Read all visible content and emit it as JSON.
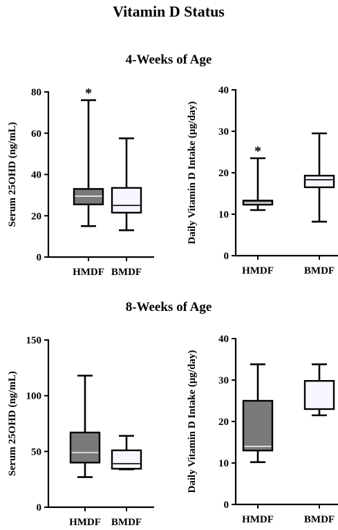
{
  "figure": {
    "title": "Vitamin D Status",
    "sections": [
      {
        "title": "4-Weeks of Age"
      },
      {
        "title": "8-Weeks of Age"
      }
    ]
  },
  "colors": {
    "hmdf_fill": "#7a7a7a",
    "bmdf_fill": "#f7f7ff",
    "axis": "#000000"
  },
  "chart_data": [
    {
      "type": "box",
      "section": "4-Weeks of Age",
      "ylabel": "Serum 25OHD (ng/mL)",
      "ylim": [
        0,
        80
      ],
      "yticks": [
        0,
        20,
        40,
        60,
        80
      ],
      "categories": [
        "HMDF",
        "BMDF"
      ],
      "boxes": [
        {
          "category": "HMDF",
          "min": 15,
          "q1": 25.5,
          "median": 29.5,
          "q3": 33,
          "max": 76,
          "significance": "*"
        },
        {
          "category": "BMDF",
          "min": 13,
          "q1": 21.5,
          "median": 25,
          "q3": 33.5,
          "max": 57.5,
          "significance": ""
        }
      ]
    },
    {
      "type": "box",
      "section": "4-Weeks of Age",
      "ylabel": "Daily Vitamin D Intake (μg/day)",
      "ylim": [
        0,
        40
      ],
      "yticks": [
        0,
        10,
        20,
        30,
        40
      ],
      "categories": [
        "HMDF",
        "BMDF"
      ],
      "boxes": [
        {
          "category": "HMDF",
          "min": 11,
          "q1": 12.3,
          "median": 12.7,
          "q3": 13.3,
          "max": 23.5,
          "significance": "*"
        },
        {
          "category": "BMDF",
          "min": 8.2,
          "q1": 16.5,
          "median": 18.3,
          "q3": 19.3,
          "max": 29.5,
          "significance": ""
        }
      ]
    },
    {
      "type": "box",
      "section": "8-Weeks of Age",
      "ylabel": "Serum 25OHD (ng/mL)",
      "ylim": [
        0,
        150
      ],
      "yticks": [
        0,
        50,
        100,
        150
      ],
      "categories": [
        "HMDF",
        "BMDF"
      ],
      "boxes": [
        {
          "category": "HMDF",
          "min": 27,
          "q1": 40,
          "median": 49,
          "q3": 67,
          "max": 118,
          "significance": ""
        },
        {
          "category": "BMDF",
          "min": 34,
          "q1": 34.5,
          "median": 39,
          "q3": 51,
          "max": 64,
          "significance": ""
        }
      ]
    },
    {
      "type": "box",
      "section": "8-Weeks of Age",
      "ylabel": "Daily Vitamin D Intake (μg/day)",
      "ylim": [
        0,
        40
      ],
      "yticks": [
        0,
        10,
        20,
        30,
        40
      ],
      "categories": [
        "HMDF",
        "BMDF"
      ],
      "boxes": [
        {
          "category": "HMDF",
          "min": 10.2,
          "q1": 13,
          "median": 14,
          "q3": 25,
          "max": 33.8,
          "significance": ""
        },
        {
          "category": "BMDF",
          "min": 21.5,
          "q1": 23,
          "median": 23,
          "q3": 29.8,
          "max": 33.8,
          "significance": ""
        }
      ]
    }
  ]
}
